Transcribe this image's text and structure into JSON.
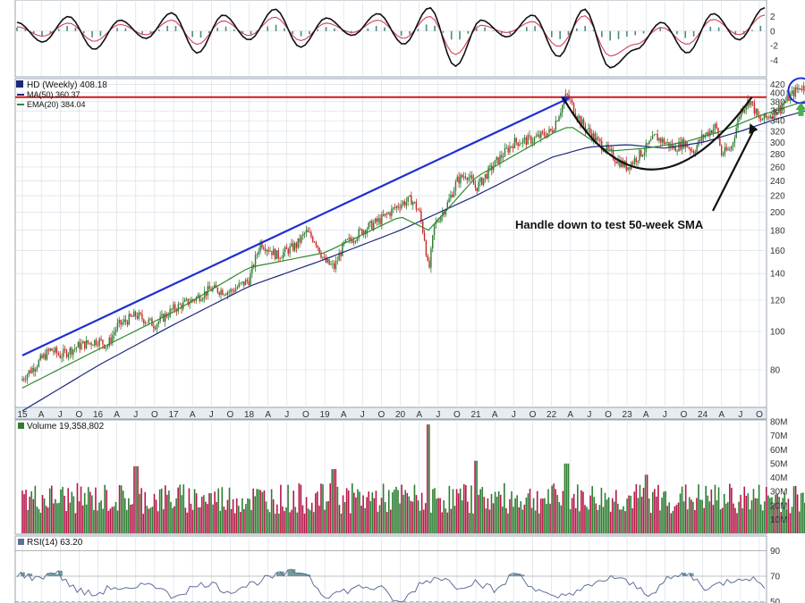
{
  "colors": {
    "panel_bg": "#ffffff",
    "grid": "#d3dbe4",
    "frame": "#9aa6b2",
    "axis_bg": "#e7ecf1",
    "up_candle": "#2e7d32",
    "down_candle": "#c62828",
    "ma50": "#1d2a7a",
    "ema20": "#2e8b2e",
    "resistance": "#d11a1a",
    "trendline": "#1f2fd0",
    "cup": "#111111",
    "circle": "#1f2fd0",
    "green_arrow": "#4caf50",
    "vol_up": "#2e7d32",
    "vol_down": "#b5174a",
    "rsi_line": "#5f6f9a",
    "rsi_fill": "#6f9a98",
    "macd_black": "#111111",
    "macd_red": "#d0405a",
    "macd_hist": "#4f8a7c"
  },
  "chart_data": [
    {
      "type": "line",
      "panel": "macd",
      "yticks": [
        2,
        0,
        -2,
        -4
      ],
      "ylim": [
        -6,
        4
      ],
      "series": [
        {
          "values": [
            1.2,
            -1.5,
            2.0,
            -2.5,
            1.5,
            -1.0,
            2.5,
            -3.0,
            2.2,
            -1.2,
            3.0,
            -2.2,
            1.8,
            -0.6,
            2.4,
            -1.8,
            3.2,
            -4.8,
            1.5,
            -0.8,
            2.2,
            -3.5,
            3.0,
            -5.0,
            -2.5,
            1.2,
            -3.0,
            2.4,
            -1.2,
            3.2
          ]
        },
        {
          "values": [
            0.6,
            -0.7,
            1.1,
            -1.4,
            0.9,
            -0.5,
            1.5,
            -1.8,
            1.4,
            -0.6,
            1.9,
            -1.3,
            1.1,
            -0.2,
            1.5,
            -1.0,
            2.0,
            -3.2,
            0.8,
            -0.2,
            1.3,
            -2.1,
            2.1,
            -3.4,
            -1.8,
            0.5,
            -1.8,
            1.6,
            -0.5,
            2.2
          ]
        }
      ]
    },
    {
      "type": "candlestick",
      "panel": "price",
      "scale": "log",
      "yticks": [
        420,
        400,
        380,
        360,
        340,
        320,
        300,
        280,
        260,
        240,
        220,
        200,
        180,
        160,
        140,
        120,
        100,
        80
      ],
      "ylim": [
        65,
        430
      ],
      "x_ticks": [
        "15",
        "A",
        "J",
        "O",
        "16",
        "A",
        "J",
        "O",
        "17",
        "A",
        "J",
        "O",
        "18",
        "A",
        "J",
        "O",
        "19",
        "A",
        "J",
        "O",
        "20",
        "A",
        "J",
        "O",
        "21",
        "A",
        "J",
        "O",
        "22",
        "A",
        "J",
        "O",
        "23",
        "A",
        "J",
        "O",
        "24",
        "A",
        "J",
        "O"
      ],
      "close_path": [
        [
          0,
          76
        ],
        [
          1.5,
          90
        ],
        [
          2,
          87
        ],
        [
          3,
          92
        ],
        [
          4,
          95
        ],
        [
          4.5,
          92
        ],
        [
          5,
          103
        ],
        [
          6,
          110
        ],
        [
          7,
          104
        ],
        [
          8,
          114
        ],
        [
          9,
          120
        ],
        [
          10,
          128
        ],
        [
          11,
          126
        ],
        [
          12,
          135
        ],
        [
          12.6,
          168
        ],
        [
          13.5,
          155
        ],
        [
          14.5,
          165
        ],
        [
          15,
          178
        ],
        [
          15.5,
          170
        ],
        [
          16,
          150
        ],
        [
          16.5,
          145
        ],
        [
          17,
          165
        ],
        [
          18,
          180
        ],
        [
          19,
          192
        ],
        [
          20,
          210
        ],
        [
          20.6,
          215
        ],
        [
          21,
          200
        ],
        [
          21.3,
          170
        ],
        [
          21.5,
          140
        ],
        [
          21.8,
          185
        ],
        [
          22.5,
          210
        ],
        [
          23,
          240
        ],
        [
          23.5,
          250
        ],
        [
          24,
          230
        ],
        [
          25,
          265
        ],
        [
          26,
          300
        ],
        [
          27,
          305
        ],
        [
          28,
          320
        ],
        [
          28.8,
          395
        ],
        [
          29.6,
          335
        ],
        [
          30.5,
          300
        ],
        [
          31.5,
          270
        ],
        [
          32,
          260
        ],
        [
          33,
          290
        ],
        [
          33.5,
          310
        ],
        [
          34,
          300
        ],
        [
          34.5,
          290
        ],
        [
          35,
          300
        ],
        [
          35.5,
          285
        ],
        [
          36,
          310
        ],
        [
          36.7,
          330
        ],
        [
          37,
          280
        ],
        [
          37.5,
          290
        ],
        [
          38,
          360
        ],
        [
          38.5,
          385
        ],
        [
          39,
          340
        ],
        [
          39.5,
          350
        ],
        [
          40,
          365
        ],
        [
          40.8,
          400
        ],
        [
          41.2,
          415
        ],
        [
          41.6,
          408
        ]
      ],
      "moving_averages": [
        {
          "name": "MA(50) 360.37",
          "values": [
            [
              0,
              63
            ],
            [
              4,
              82
            ],
            [
              8,
              104
            ],
            [
              12,
              130
            ],
            [
              16,
              152
            ],
            [
              20,
              180
            ],
            [
              24,
              220
            ],
            [
              28,
              275
            ],
            [
              30,
              292
            ],
            [
              32,
              296
            ],
            [
              34,
              290
            ],
            [
              36,
              300
            ],
            [
              38,
              320
            ],
            [
              40,
              345
            ],
            [
              41.6,
              362
            ]
          ]
        },
        {
          "name": "EMA(20) 384.04",
          "values": [
            [
              0,
              72
            ],
            [
              4,
              90
            ],
            [
              8,
              112
            ],
            [
              12,
              145
            ],
            [
              16,
              158
            ],
            [
              20,
              195
            ],
            [
              21.5,
              180
            ],
            [
              24,
              245
            ],
            [
              28,
              315
            ],
            [
              29,
              330
            ],
            [
              31,
              285
            ],
            [
              33,
              290
            ],
            [
              35,
              300
            ],
            [
              37,
              320
            ],
            [
              39,
              350
            ],
            [
              41.6,
              384
            ]
          ]
        }
      ],
      "annotations": [
        {
          "kind": "hline",
          "value": 390
        },
        {
          "kind": "trendline",
          "from": [
            0,
            87
          ],
          "to": [
            29,
            390
          ]
        },
        {
          "kind": "cup",
          "from": [
            28.6,
            390
          ],
          "to": [
            38.6,
            390
          ],
          "bottom": [
            33,
            255
          ]
        },
        {
          "kind": "circle",
          "center": [
            41.2,
            405
          ]
        },
        {
          "text": "Handle down to test 50-week SMA"
        }
      ]
    },
    {
      "type": "bar",
      "panel": "volume",
      "yticks": [
        "80M",
        "70M",
        "60M",
        "50M",
        "40M",
        "30M",
        "20M",
        "10M"
      ],
      "ylim": [
        0,
        80
      ],
      "spikes": [
        [
          21.5,
          78
        ],
        [
          24,
          52
        ],
        [
          28.8,
          50
        ],
        [
          6,
          48
        ],
        [
          16.5,
          46
        ],
        [
          33,
          42
        ]
      ]
    },
    {
      "type": "line",
      "panel": "rsi",
      "yticks": [
        90,
        70,
        50
      ],
      "ylim": [
        40,
        100
      ],
      "values": [
        72,
        68,
        74,
        60,
        55,
        62,
        58,
        66,
        54,
        60,
        65,
        58,
        63,
        68,
        72,
        74,
        55,
        58,
        62,
        60,
        48,
        64,
        70,
        62,
        66,
        58,
        74,
        60,
        52,
        58,
        62,
        70,
        64,
        56,
        68,
        72,
        60,
        66,
        70,
        63
      ]
    }
  ],
  "labels": {
    "price_legend_title": "HD (Weekly) 408.18",
    "price_legend_ma": "MA(50) 360.37",
    "price_legend_ema": "EMA(20) 384.04",
    "volume_legend": "Volume 19,358,802",
    "rsi_legend": "RSI(14) 63.20",
    "annotation_text": "Handle down to test 50-week SMA"
  }
}
